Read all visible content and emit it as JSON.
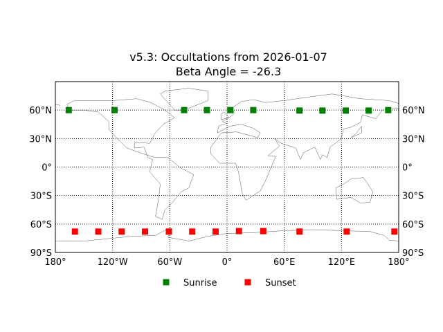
{
  "chart_data": {
    "type": "scatter",
    "title_line1": "v5.3: Occultations from 2026-01-07",
    "title_line2": "Beta Angle = -26.3",
    "projection": "cylindrical",
    "xlim": [
      -180,
      180
    ],
    "ylim": [
      -90,
      90
    ],
    "grid": true,
    "x_ticks": [
      {
        "value": -180,
        "label": "180°"
      },
      {
        "value": -120,
        "label": "120°W"
      },
      {
        "value": -60,
        "label": "60°W"
      },
      {
        "value": 0,
        "label": "0°"
      },
      {
        "value": 60,
        "label": "60°E"
      },
      {
        "value": 120,
        "label": "120°E"
      },
      {
        "value": 180,
        "label": "180°"
      }
    ],
    "y_ticks": [
      {
        "value": 60,
        "label": "60°N"
      },
      {
        "value": 30,
        "label": "30°N"
      },
      {
        "value": 0,
        "label": "0°"
      },
      {
        "value": -30,
        "label": "30°S"
      },
      {
        "value": -60,
        "label": "60°S"
      },
      {
        "value": -90,
        "label": "90°S"
      }
    ],
    "legend_position": "bottom-center",
    "series": [
      {
        "name": "Sunrise",
        "color": "#008000",
        "marker": "square",
        "points": [
          [
            -166,
            60
          ],
          [
            -118,
            60
          ],
          [
            -45,
            60
          ],
          [
            -21,
            60
          ],
          [
            3.5,
            60
          ],
          [
            27.5,
            60
          ],
          [
            76,
            59.5
          ],
          [
            100,
            59.5
          ],
          [
            124.5,
            59.5
          ],
          [
            148.5,
            59.5
          ],
          [
            169,
            60
          ]
        ]
      },
      {
        "name": "Sunset",
        "color": "#ff0000",
        "marker": "square",
        "points": [
          [
            -159.5,
            -68
          ],
          [
            -135,
            -68
          ],
          [
            -110.5,
            -68
          ],
          [
            -86,
            -68
          ],
          [
            -61,
            -68
          ],
          [
            -36.5,
            -68
          ],
          [
            -12,
            -68
          ],
          [
            12.5,
            -67.5
          ],
          [
            38,
            -67.5
          ],
          [
            76,
            -68
          ],
          [
            125.5,
            -68
          ],
          [
            175.5,
            -68
          ]
        ]
      }
    ]
  }
}
